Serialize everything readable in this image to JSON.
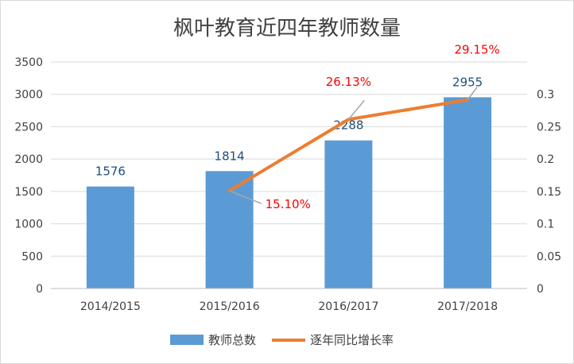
{
  "chart_data": {
    "type": "bar",
    "title": "枫叶教育近四年教师数量",
    "categories": [
      "2014/2015",
      "2015/2016",
      "2016/2017",
      "2017/2018"
    ],
    "series": [
      {
        "name": "教师总数",
        "type": "bar",
        "axis": "left",
        "values": [
          1576,
          1814,
          2288,
          2955
        ],
        "data_labels": [
          "1576",
          "1814",
          "2288",
          "2955"
        ],
        "color": "#5b9bd5"
      },
      {
        "name": "逐年同比增长率",
        "type": "line",
        "axis": "right",
        "values": [
          null,
          0.151,
          0.2613,
          0.2915
        ],
        "data_labels": [
          "",
          "15.10%",
          "26.13%",
          "29.15%"
        ],
        "color": "#ed7d31"
      }
    ],
    "ylim_left": [
      0,
      3500
    ],
    "yticks_left": [
      "0",
      "500",
      "1000",
      "1500",
      "2000",
      "2500",
      "3000",
      "3500"
    ],
    "ylim_right": [
      0,
      0.35
    ],
    "yticks_right": [
      "0",
      "0.05",
      "0.1",
      "0.15",
      "0.2",
      "0.25",
      "0.3"
    ],
    "grid": true,
    "legend_position": "bottom",
    "label_color": "#ff0000",
    "bar_label_color": "#1f4e79"
  }
}
